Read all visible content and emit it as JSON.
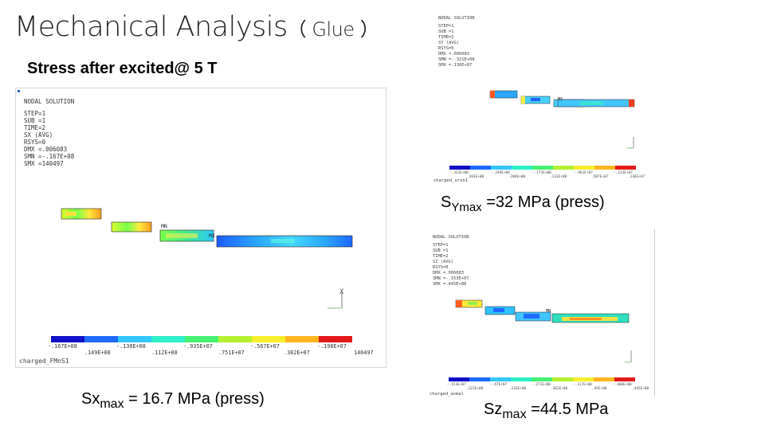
{
  "header": {
    "title": "Mechanical Analysis",
    "title_paren": "（ Glue ）"
  },
  "subtitle": "Stress after excited@ 5 T",
  "panels": {
    "main": {
      "solution_title": "NODAL SOLUTION",
      "info": [
        "STEP=1",
        "SUB =1",
        "TIME=2",
        "SX       (AVG)",
        "RSYS=0",
        "DMX =.006083",
        "SMN =-.167E+08",
        "SMX =140497"
      ],
      "legend_top": [
        "-.167E+08",
        "-.130E+08",
        "-.935E+07",
        "-.567E+07",
        "-.198E+07"
      ],
      "legend_bottom": [
        ".149E+08",
        ".112E+08",
        ".751E+07",
        ".382E+07",
        "140497"
      ],
      "caption": "charged_FMnS1",
      "node_labels": [
        "MN",
        "MX"
      ],
      "axis_label": "X"
    },
    "top_right": {
      "solution_title": "NODAL SOLUTION",
      "info": [
        "STEP=1",
        "SUB =1",
        "TIME=2",
        "SY       (AVG)",
        "RSYS=0",
        "DMX =.006083",
        "SMN =-.321E+08",
        "SMX =.136E+07"
      ],
      "legend_top": [
        "-.321E+08",
        "-.246E+08",
        "-.171E+08",
        "-.961E+07",
        "-.213E+07"
      ],
      "legend_bottom": [
        ".283E+08",
        ".208E+08",
        ".133E+08",
        ".587E+07",
        ".136E+07"
      ],
      "caption": "charged_urun1",
      "node_labels": [
        "MX"
      ]
    },
    "bottom_right": {
      "solution_title": "NODAL SOLUTION",
      "info": [
        "STEP=1",
        "SUB =1",
        "TIME=2",
        "SZ       (AVG)",
        "RSYS=0",
        "DMX =.006083",
        "SMN =-.153E+07",
        "SMX =.445E+08"
      ],
      "legend_top": [
        "-.153E+07",
        "-.47E+07",
        "-.271E+08",
        "-.317E+08",
        "-.408E+08"
      ],
      "legend_bottom": [
        ".121E+08",
        ".216E+08",
        ".362E+08",
        ".45E+08",
        ".445E+08"
      ],
      "caption": "charged_axmal",
      "node_labels": [
        "MN"
      ]
    }
  },
  "labels": {
    "sy": {
      "main": "S",
      "sub": "Ymax",
      "rest": " =32 MPa (press)"
    },
    "sx": {
      "main": "Sx",
      "sub": "max",
      "rest": " = 16.7 MPa (press)"
    },
    "sz": {
      "main": "Sz",
      "sub": "max",
      "rest": " =44.5 MPa"
    }
  }
}
